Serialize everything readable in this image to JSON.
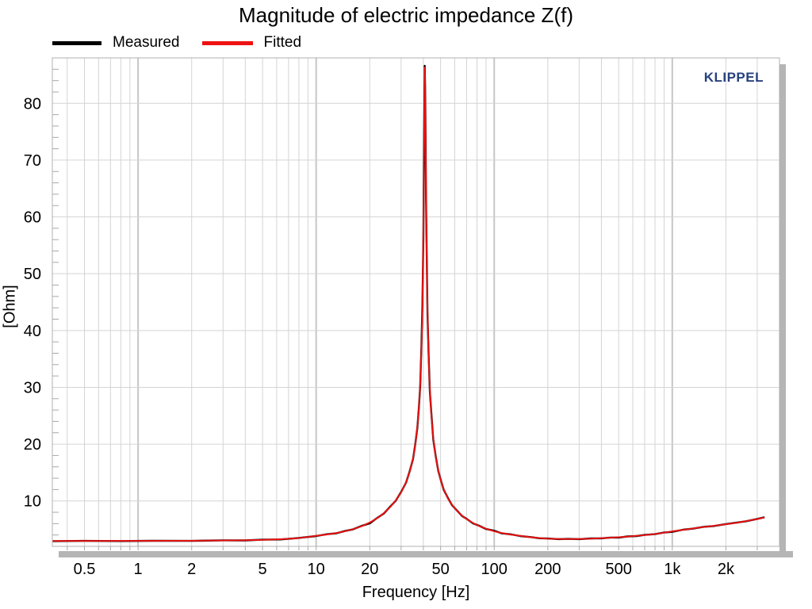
{
  "title": "Magnitude of electric impedance Z(f)",
  "watermark": "KLIPPEL",
  "watermark_color": "#27417E",
  "legend": [
    {
      "label": "Measured",
      "color": "#000000"
    },
    {
      "label": "Fitted",
      "color": "#ee1111"
    }
  ],
  "chart_data": {
    "type": "line",
    "title": "Magnitude of electric impedance Z(f)",
    "xlabel": "Frequency [Hz]",
    "ylabel": "[Ohm]",
    "x_scale": "log",
    "y_scale": "linear",
    "xlim": [
      0.33,
      4000
    ],
    "ylim": [
      2,
      88
    ],
    "grid": true,
    "legend_position": "top-left",
    "resonance_peak": {
      "frequency_hz": 40.7,
      "impedance_ohm": 86.3
    },
    "x_ticks": [
      {
        "label": "0.5",
        "value": 0.5
      },
      {
        "label": "1",
        "value": 1
      },
      {
        "label": "2",
        "value": 2
      },
      {
        "label": "5",
        "value": 5
      },
      {
        "label": "10",
        "value": 10
      },
      {
        "label": "20",
        "value": 20
      },
      {
        "label": "50",
        "value": 50
      },
      {
        "label": "100",
        "value": 100
      },
      {
        "label": "200",
        "value": 200
      },
      {
        "label": "500",
        "value": 500
      },
      {
        "label": "1k",
        "value": 1000
      },
      {
        "label": "2k",
        "value": 2000
      }
    ],
    "y_ticks": [
      10,
      20,
      30,
      40,
      50,
      60,
      70,
      80
    ],
    "y_minor_step": 2,
    "series": [
      {
        "name": "Measured",
        "color": "#000000",
        "width": 2.4,
        "points": [
          [
            0.33,
            2.92
          ],
          [
            0.5,
            2.97
          ],
          [
            0.8,
            2.93
          ],
          [
            1.2,
            2.98
          ],
          [
            2,
            2.96
          ],
          [
            3,
            3.06
          ],
          [
            4,
            3.05
          ],
          [
            5,
            3.17
          ],
          [
            6.3,
            3.22
          ],
          [
            8,
            3.48
          ],
          [
            10,
            3.82
          ],
          [
            11.5,
            4.14
          ],
          [
            13,
            4.31
          ],
          [
            14.5,
            4.69
          ],
          [
            16,
            4.97
          ],
          [
            18,
            5.6
          ],
          [
            20,
            6.05
          ],
          [
            22,
            7.0
          ],
          [
            24,
            7.8
          ],
          [
            26,
            8.96
          ],
          [
            28,
            10.04
          ],
          [
            30,
            11.56
          ],
          [
            32,
            13.24
          ],
          [
            33.5,
            15.2
          ],
          [
            35,
            17.4
          ],
          [
            36,
            19.9
          ],
          [
            37,
            22.85
          ],
          [
            37.8,
            26.7
          ],
          [
            38.4,
            30.2
          ],
          [
            39,
            36.9
          ],
          [
            39.5,
            44.6
          ],
          [
            40,
            56.2
          ],
          [
            40.3,
            70.9
          ],
          [
            40.55,
            80.1
          ],
          [
            40.7,
            86.6
          ],
          [
            40.9,
            83.2
          ],
          [
            41.1,
            77.9
          ],
          [
            41.4,
            64.2
          ],
          [
            41.8,
            52.7
          ],
          [
            42.2,
            43.0
          ],
          [
            42.8,
            35.9
          ],
          [
            43.5,
            29.2
          ],
          [
            44.5,
            24.8
          ],
          [
            45.5,
            20.8
          ],
          [
            47,
            17.75
          ],
          [
            48.5,
            15.3
          ],
          [
            50,
            13.8
          ],
          [
            52,
            12.0
          ],
          [
            55,
            10.5
          ],
          [
            58,
            9.25
          ],
          [
            62,
            8.26
          ],
          [
            66,
            7.35
          ],
          [
            70,
            6.85
          ],
          [
            76,
            6.05
          ],
          [
            82,
            5.65
          ],
          [
            90,
            5.06
          ],
          [
            100,
            4.75
          ],
          [
            110,
            4.31
          ],
          [
            125,
            4.09
          ],
          [
            140,
            3.81
          ],
          [
            160,
            3.63
          ],
          [
            180,
            3.42
          ],
          [
            200,
            3.38
          ],
          [
            230,
            3.27
          ],
          [
            260,
            3.31
          ],
          [
            300,
            3.27
          ],
          [
            350,
            3.39
          ],
          [
            400,
            3.41
          ],
          [
            450,
            3.55
          ],
          [
            500,
            3.55
          ],
          [
            560,
            3.75
          ],
          [
            630,
            3.82
          ],
          [
            700,
            4.01
          ],
          [
            800,
            4.15
          ],
          [
            900,
            4.43
          ],
          [
            1000,
            4.55
          ],
          [
            1150,
            4.93
          ],
          [
            1300,
            5.12
          ],
          [
            1500,
            5.43
          ],
          [
            1700,
            5.57
          ],
          [
            2000,
            5.93
          ],
          [
            2300,
            6.18
          ],
          [
            2600,
            6.42
          ],
          [
            3000,
            6.83
          ],
          [
            3300,
            7.12
          ]
        ]
      },
      {
        "name": "Fitted",
        "color": "#ee1111",
        "width": 1.9,
        "points": [
          [
            0.33,
            2.95
          ],
          [
            0.5,
            2.95
          ],
          [
            0.8,
            2.96
          ],
          [
            1.2,
            2.97
          ],
          [
            2,
            2.99
          ],
          [
            3,
            3.03
          ],
          [
            4,
            3.08
          ],
          [
            5,
            3.14
          ],
          [
            6.3,
            3.25
          ],
          [
            8,
            3.45
          ],
          [
            10,
            3.85
          ],
          [
            11.5,
            4.1
          ],
          [
            13,
            4.35
          ],
          [
            14.5,
            4.65
          ],
          [
            16,
            5.0
          ],
          [
            18,
            5.55
          ],
          [
            20,
            6.2
          ],
          [
            22,
            6.95
          ],
          [
            24,
            7.85
          ],
          [
            26,
            8.9
          ],
          [
            28,
            10.1
          ],
          [
            30,
            11.5
          ],
          [
            32,
            13.3
          ],
          [
            33.5,
            15.1
          ],
          [
            35,
            17.5
          ],
          [
            36,
            19.8
          ],
          [
            37,
            23.0
          ],
          [
            37.8,
            26.5
          ],
          [
            38.4,
            30.5
          ],
          [
            39,
            36.5
          ],
          [
            39.5,
            44.0
          ],
          [
            40,
            57.0
          ],
          [
            40.3,
            70.0
          ],
          [
            40.55,
            81.0
          ],
          [
            40.7,
            86.3
          ],
          [
            40.9,
            84.0
          ],
          [
            41.1,
            77.0
          ],
          [
            41.4,
            65.0
          ],
          [
            41.8,
            52.0
          ],
          [
            42.2,
            43.5
          ],
          [
            42.8,
            35.5
          ],
          [
            43.5,
            29.5
          ],
          [
            44.5,
            24.5
          ],
          [
            45.5,
            21.0
          ],
          [
            47,
            17.6
          ],
          [
            48.5,
            15.4
          ],
          [
            50,
            13.7
          ],
          [
            52,
            12.1
          ],
          [
            55,
            10.4
          ],
          [
            58,
            9.3
          ],
          [
            62,
            8.2
          ],
          [
            66,
            7.4
          ],
          [
            70,
            6.8
          ],
          [
            76,
            6.1
          ],
          [
            82,
            5.6
          ],
          [
            90,
            5.1
          ],
          [
            100,
            4.65
          ],
          [
            110,
            4.35
          ],
          [
            125,
            4.05
          ],
          [
            140,
            3.85
          ],
          [
            160,
            3.6
          ],
          [
            180,
            3.45
          ],
          [
            200,
            3.35
          ],
          [
            230,
            3.3
          ],
          [
            260,
            3.28
          ],
          [
            300,
            3.3
          ],
          [
            350,
            3.36
          ],
          [
            400,
            3.44
          ],
          [
            450,
            3.52
          ],
          [
            500,
            3.62
          ],
          [
            560,
            3.72
          ],
          [
            630,
            3.85
          ],
          [
            700,
            3.98
          ],
          [
            800,
            4.18
          ],
          [
            900,
            4.4
          ],
          [
            1000,
            4.65
          ],
          [
            1150,
            4.9
          ],
          [
            1300,
            5.15
          ],
          [
            1500,
            5.4
          ],
          [
            1700,
            5.6
          ],
          [
            2000,
            5.9
          ],
          [
            2300,
            6.15
          ],
          [
            2600,
            6.45
          ],
          [
            3000,
            6.8
          ],
          [
            3300,
            7.1
          ]
        ]
      }
    ]
  },
  "colors": {
    "grid_minor": "#d4d4d4",
    "grid_major_decade": "#c6c6c6",
    "frame": "#b0b0b0",
    "shadow": "#b5b5b5",
    "tick": "#a8a8a8",
    "text": "#000000",
    "background": "#ffffff"
  }
}
